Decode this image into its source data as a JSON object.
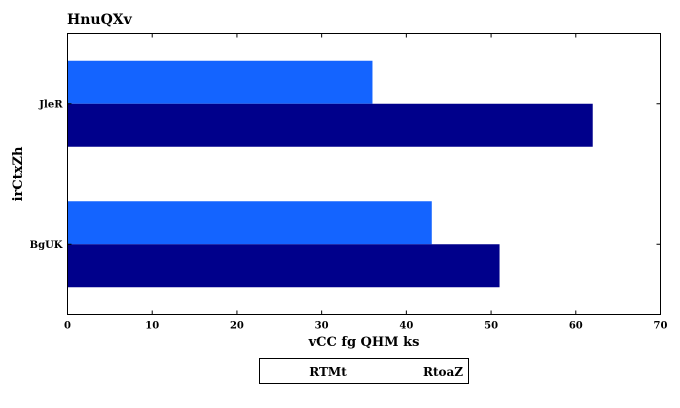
{
  "chart_data": {
    "type": "bar",
    "orientation": "horizontal",
    "title": "HnuQXv",
    "xlabel": "vCC fg QHM ks",
    "ylabel": "irCtxZh",
    "categories": [
      "JleR",
      "BgUK"
    ],
    "series": [
      {
        "name": "RTMt",
        "color": "#1464ff",
        "values": [
          36,
          43
        ]
      },
      {
        "name": "RtoaZ",
        "color": "#00008b",
        "values": [
          62,
          51
        ]
      }
    ],
    "xlim": [
      0,
      70
    ],
    "xticks": [
      0,
      10,
      20,
      30,
      40,
      50,
      60,
      70
    ],
    "grid": false,
    "legend_position": "bottom-center"
  }
}
